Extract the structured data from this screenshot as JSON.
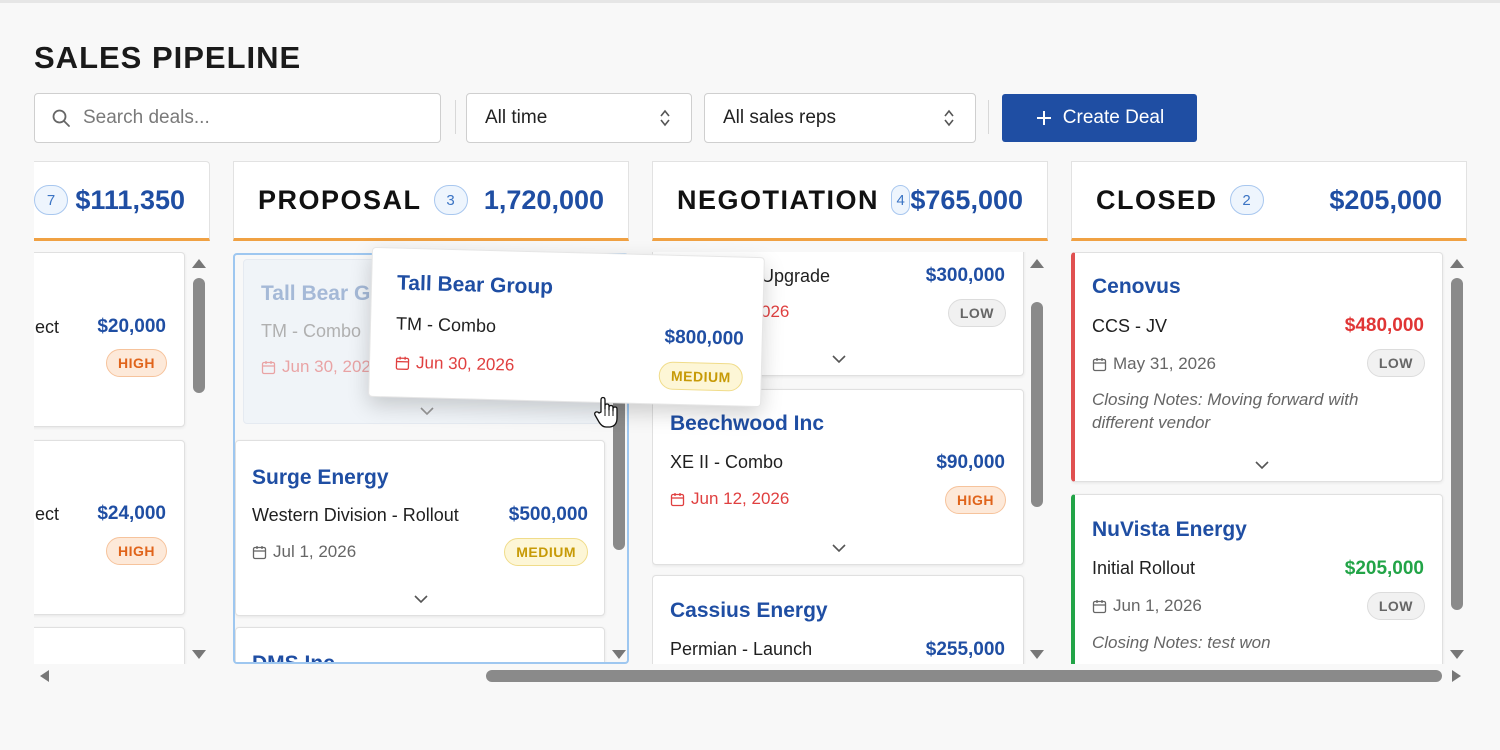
{
  "page_title": "SALES PIPELINE",
  "search": {
    "placeholder": "Search deals..."
  },
  "filters": {
    "time": "All time",
    "reps": "All sales reps"
  },
  "create_button": {
    "label": "Create Deal"
  },
  "columns": [
    {
      "name": "",
      "count": "7",
      "total": "$111,350",
      "cards": [
        {
          "deal": "ect",
          "amount": "$20,000",
          "priority": "HIGH"
        },
        {
          "deal": "ect",
          "amount": "$24,000",
          "priority": "HIGH"
        }
      ]
    },
    {
      "name": "PROPOSAL",
      "count": "3",
      "total": "1,720,000",
      "cards": [
        {
          "company": "Tall Bear Gro",
          "deal": "TM - Combo",
          "date": "Jun 30, 2026"
        },
        {
          "company": "Surge Energy",
          "deal": "Western Division - Rollout",
          "amount": "$500,000",
          "date": "Jul 1, 2026",
          "priority": "MEDIUM"
        },
        {
          "company": "DMS Inc"
        }
      ]
    },
    {
      "name": "NEGOTIATION",
      "count": "4",
      "total": "$765,000",
      "cards": [
        {
          "deal": "Upgrade",
          "amount": "$300,000",
          "date": "026",
          "priority": "LOW"
        },
        {
          "company": "Beechwood Inc",
          "deal": "XE II - Combo",
          "amount": "$90,000",
          "date": "Jun 12, 2026",
          "priority": "HIGH"
        },
        {
          "company": "Cassius Energy",
          "deal": "Permian - Launch",
          "amount": "$255,000"
        }
      ]
    },
    {
      "name": "CLOSED",
      "count": "2",
      "total": "$205,000",
      "cards": [
        {
          "company": "Cenovus",
          "deal": "CCS - JV",
          "amount": "$480,000",
          "date": "May 31, 2026",
          "priority": "LOW",
          "notes_label": "Closing Notes:",
          "notes": " Moving forward with different vendor"
        },
        {
          "company": "NuVista Energy",
          "deal": "Initial Rollout",
          "amount": "$205,000",
          "date": "Jun 1, 2026",
          "priority": "LOW",
          "notes_label": "Closing Notes:",
          "notes": " test won"
        }
      ]
    }
  ],
  "drag_card": {
    "company": "Tall Bear Group",
    "deal": "TM - Combo",
    "amount": "$800,000",
    "date": "Jun 30, 2026",
    "priority": "MEDIUM"
  },
  "colors": {
    "accent": "#1f4ea3",
    "header_underline": "#f0a143",
    "lost": "#e05050",
    "won": "#22a447",
    "overdue": "#e04040"
  }
}
